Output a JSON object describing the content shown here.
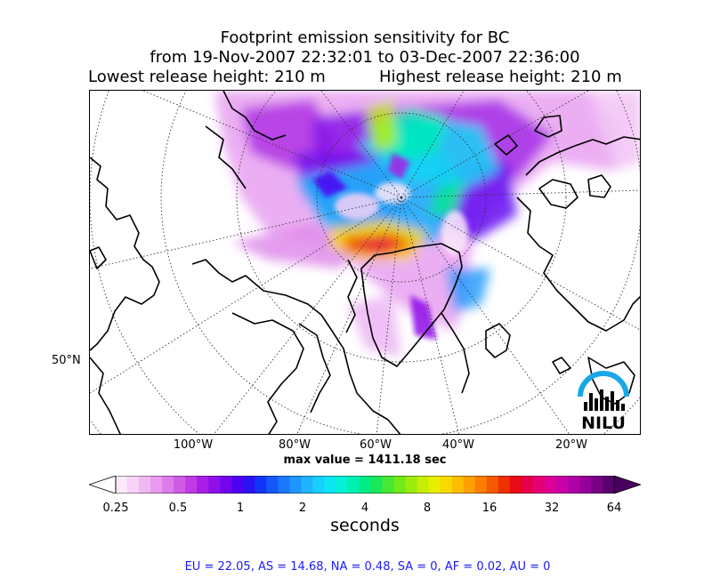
{
  "title": {
    "line1": "Footprint emission sensitivity for BC",
    "line2": "from 19-Nov-2007 22:32:01 to 03-Dec-2007 22:36:00",
    "lowest": "Lowest release height: 210 m",
    "highest": "Highest release height: 210 m"
  },
  "map": {
    "lat_label": "50°N",
    "lon_labels": [
      "100°W",
      "80°W",
      "60°W",
      "40°W",
      "20°W"
    ]
  },
  "max_value": "max value = 1411.18 sec",
  "colorbar": {
    "ticks": [
      "0.25",
      "0.5",
      "1",
      "2",
      "4",
      "8",
      "16",
      "32",
      "64"
    ],
    "unit": "seconds",
    "colors": [
      "#fbe9fb",
      "#f6d2f6",
      "#f0b8f3",
      "#e89bef",
      "#dd7ceb",
      "#cf5be6",
      "#c03ae6",
      "#a91ee6",
      "#8f0fe8",
      "#7205ec",
      "#4d00f2",
      "#2b12f5",
      "#1236f7",
      "#1458fa",
      "#1a78fb",
      "#1f96fc",
      "#1fb4fc",
      "#16cffb",
      "#0be6f2",
      "#04f2d6",
      "#00f0b2",
      "#00ec86",
      "#1ae85a",
      "#45e834",
      "#70ea1a",
      "#9bec0c",
      "#c5ee05",
      "#e8ee00",
      "#f8da00",
      "#fdbd00",
      "#fd9f00",
      "#fb7e00",
      "#f65a00",
      "#f03000",
      "#ea0a18",
      "#e6004a",
      "#e40075",
      "#dc0096",
      "#c900a6",
      "#b000a8",
      "#960099",
      "#7a0088",
      "#5c0070"
    ],
    "under_color": "#ffffff",
    "over_color": "#4a005e"
  },
  "regions": "EU = 22.05,  AS = 14.68,  NA = 0.48,  SA = 0,  AF = 0.02,  AU = 0",
  "logo": {
    "text": "NILU"
  }
}
